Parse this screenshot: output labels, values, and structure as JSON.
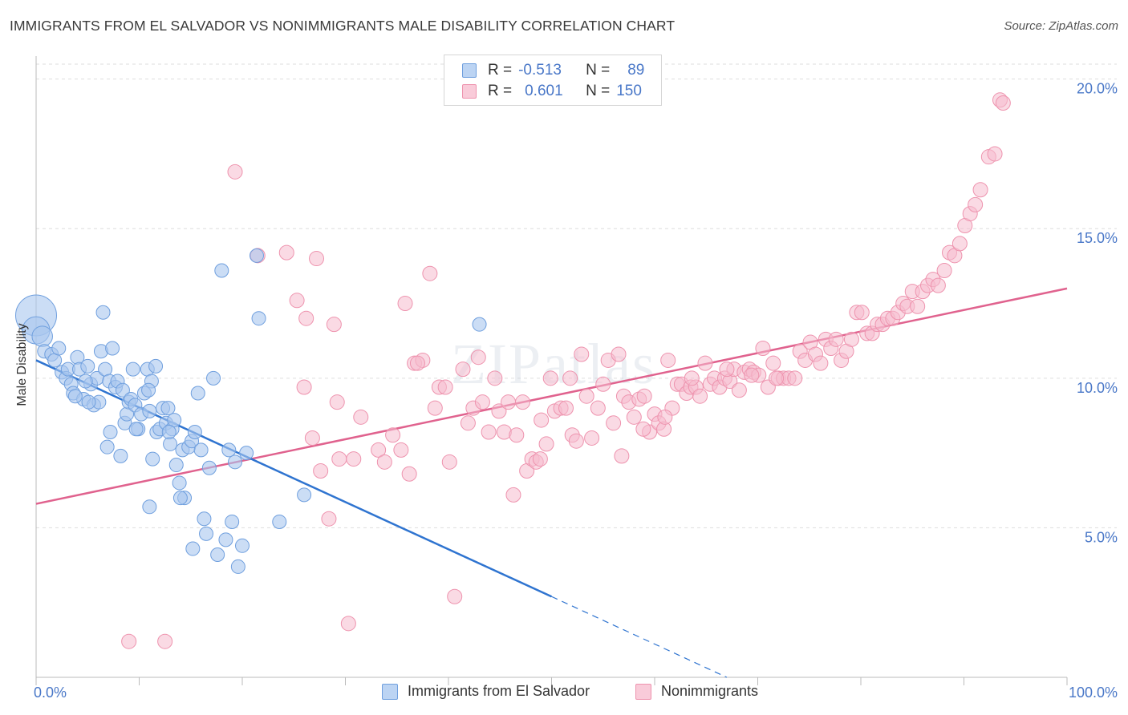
{
  "title": "IMMIGRANTS FROM EL SALVADOR VS NONIMMIGRANTS MALE DISABILITY CORRELATION CHART",
  "source": "Source: ZipAtlas.com",
  "watermark": "ZIPatlas",
  "legend": {
    "rows": [
      {
        "r_label": "R =",
        "r_value": "-0.513",
        "n_label": "N =",
        "n_value": "89"
      },
      {
        "r_label": "R =",
        "r_value": "0.601",
        "n_label": "N =",
        "n_value": "150"
      }
    ]
  },
  "colors": {
    "blue_fill": "#a9c6ee",
    "blue_stroke": "#6f9fde",
    "blue_line": "#2f74d0",
    "pink_fill": "#f6bccd",
    "pink_stroke": "#ee93ae",
    "pink_line": "#e0628e",
    "tick_text": "#4a78c8",
    "grid": "#dddddd"
  },
  "chart_data": {
    "type": "scatter",
    "title": "IMMIGRANTS FROM EL SALVADOR VS NONIMMIGRANTS MALE DISABILITY CORRELATION CHART",
    "xlabel": "",
    "ylabel": "Male Disability",
    "xlim": [
      0,
      100
    ],
    "ylim": [
      0,
      20.5
    ],
    "x_tick_labels": [
      "0.0%",
      "100.0%"
    ],
    "y_ticks": [
      5,
      10,
      15,
      20
    ],
    "y_tick_labels": [
      "5.0%",
      "10.0%",
      "15.0%",
      "20.0%"
    ],
    "grid": "horizontal dashed",
    "legend_position": "top-center and bottom",
    "series": [
      {
        "name": "Immigrants from El Salvador",
        "color": "#a9c6ee",
        "R": -0.513,
        "N": 89,
        "trend": {
          "x": [
            0,
            50,
            67
          ],
          "y": [
            10.6,
            2.7,
            0.0
          ],
          "solid_until_x": 50
        },
        "points": [
          [
            0,
            12.1,
            3
          ],
          [
            0,
            11.6,
            2
          ],
          [
            0.6,
            11.4,
            1.5
          ],
          [
            0.8,
            10.9,
            1
          ],
          [
            1.5,
            10.8,
            1
          ],
          [
            1.8,
            10.6,
            1
          ],
          [
            2.2,
            11.0,
            1
          ],
          [
            2.5,
            10.2,
            1
          ],
          [
            2.9,
            10.0,
            1
          ],
          [
            3.1,
            10.3,
            1
          ],
          [
            3.4,
            9.8,
            1
          ],
          [
            3.6,
            9.5,
            1
          ],
          [
            4.0,
            10.7,
            1
          ],
          [
            4.2,
            10.3,
            1
          ],
          [
            4.6,
            9.3,
            1
          ],
          [
            5.0,
            10.4,
            1
          ],
          [
            5.3,
            9.8,
            1
          ],
          [
            5.6,
            9.1,
            1
          ],
          [
            5.9,
            10.0,
            1
          ],
          [
            6.1,
            9.2,
            1
          ],
          [
            6.3,
            10.9,
            1
          ],
          [
            6.5,
            12.2,
            1
          ],
          [
            6.7,
            10.3,
            1
          ],
          [
            6.9,
            7.7,
            1
          ],
          [
            7.1,
            9.9,
            1
          ],
          [
            7.4,
            11.0,
            1
          ],
          [
            7.7,
            9.7,
            1
          ],
          [
            7.9,
            9.9,
            1
          ],
          [
            8.2,
            7.4,
            1
          ],
          [
            8.4,
            9.6,
            1
          ],
          [
            8.6,
            8.5,
            1
          ],
          [
            8.8,
            8.8,
            1
          ],
          [
            9.0,
            9.2,
            1
          ],
          [
            9.2,
            9.3,
            1
          ],
          [
            9.4,
            10.3,
            1
          ],
          [
            9.6,
            9.1,
            1
          ],
          [
            9.9,
            8.3,
            1
          ],
          [
            10.2,
            8.8,
            1
          ],
          [
            10.5,
            9.5,
            1
          ],
          [
            10.8,
            10.3,
            1
          ],
          [
            11.0,
            8.9,
            1
          ],
          [
            11.3,
            7.3,
            1
          ],
          [
            11.6,
            10.4,
            1
          ],
          [
            11.2,
            9.9,
            1
          ],
          [
            11.0,
            5.7,
            1
          ],
          [
            11.7,
            8.2,
            1
          ],
          [
            12.0,
            8.3,
            1
          ],
          [
            12.3,
            9.0,
            1
          ],
          [
            12.6,
            8.5,
            1
          ],
          [
            12.8,
            9.0,
            1
          ],
          [
            13.0,
            7.8,
            1
          ],
          [
            13.2,
            8.3,
            1
          ],
          [
            13.4,
            8.6,
            1
          ],
          [
            13.6,
            7.1,
            1
          ],
          [
            13.9,
            6.5,
            1
          ],
          [
            14.2,
            7.6,
            1
          ],
          [
            14.4,
            6.0,
            1
          ],
          [
            14.8,
            7.7,
            1
          ],
          [
            15.1,
            7.9,
            1
          ],
          [
            15.4,
            8.2,
            1
          ],
          [
            15.7,
            9.5,
            1
          ],
          [
            16.0,
            7.6,
            1
          ],
          [
            16.3,
            5.3,
            1
          ],
          [
            16.5,
            4.8,
            1
          ],
          [
            16.8,
            7.0,
            1
          ],
          [
            17.2,
            10.0,
            1
          ],
          [
            17.6,
            4.1,
            1
          ],
          [
            18.0,
            13.6,
            1
          ],
          [
            18.4,
            4.6,
            1
          ],
          [
            18.7,
            7.6,
            1
          ],
          [
            19.0,
            5.2,
            1
          ],
          [
            19.3,
            7.2,
            1
          ],
          [
            19.6,
            3.7,
            1
          ],
          [
            20.0,
            4.4,
            1
          ],
          [
            20.4,
            7.5,
            1
          ],
          [
            21.4,
            14.1,
            1
          ],
          [
            21.6,
            12.0,
            1
          ],
          [
            23.6,
            5.2,
            1
          ],
          [
            26.0,
            6.1,
            1
          ],
          [
            15.2,
            4.3,
            1
          ],
          [
            4.8,
            9.9,
            1
          ],
          [
            10.9,
            9.6,
            1
          ],
          [
            12.9,
            8.2,
            1
          ],
          [
            14.0,
            6.0,
            1
          ],
          [
            3.8,
            9.4,
            1
          ],
          [
            5.1,
            9.2,
            1
          ],
          [
            7.2,
            8.2,
            1
          ],
          [
            9.7,
            8.3,
            1
          ],
          [
            43.0,
            11.8,
            1
          ]
        ]
      },
      {
        "name": "Nonimmigrants",
        "color": "#f6bccd",
        "R": 0.601,
        "N": 150,
        "trend": {
          "x": [
            0,
            100
          ],
          "y": [
            5.8,
            13.0
          ]
        },
        "points": [
          [
            9.0,
            1.2
          ],
          [
            12.5,
            1.2
          ],
          [
            19.3,
            16.9
          ],
          [
            21.5,
            14.1
          ],
          [
            24.3,
            14.2
          ],
          [
            25.3,
            12.6
          ],
          [
            26.0,
            9.7
          ],
          [
            26.2,
            12.0
          ],
          [
            26.8,
            8.0
          ],
          [
            27.2,
            14.0
          ],
          [
            27.6,
            6.9
          ],
          [
            28.4,
            5.3
          ],
          [
            28.9,
            11.8
          ],
          [
            29.2,
            9.2
          ],
          [
            30.3,
            1.8
          ],
          [
            30.8,
            7.3
          ],
          [
            31.5,
            8.7
          ],
          [
            33.2,
            7.6
          ],
          [
            33.8,
            7.2
          ],
          [
            34.6,
            8.1
          ],
          [
            35.4,
            7.6
          ],
          [
            35.8,
            12.5
          ],
          [
            36.2,
            6.8
          ],
          [
            36.7,
            10.5
          ],
          [
            37.5,
            10.6
          ],
          [
            38.2,
            13.5
          ],
          [
            38.7,
            9.0
          ],
          [
            39.1,
            9.7
          ],
          [
            39.7,
            9.7
          ],
          [
            40.1,
            7.2
          ],
          [
            40.6,
            2.7
          ],
          [
            41.4,
            10.3
          ],
          [
            41.9,
            8.5
          ],
          [
            42.4,
            9.0
          ],
          [
            42.9,
            10.7
          ],
          [
            43.3,
            9.2
          ],
          [
            43.9,
            8.2
          ],
          [
            44.5,
            10.0
          ],
          [
            44.9,
            8.9
          ],
          [
            45.4,
            8.2
          ],
          [
            45.8,
            9.2
          ],
          [
            46.3,
            6.1
          ],
          [
            46.6,
            8.1
          ],
          [
            47.2,
            9.2
          ],
          [
            47.6,
            6.9
          ],
          [
            48.1,
            7.3
          ],
          [
            48.5,
            7.2
          ],
          [
            49.0,
            8.6
          ],
          [
            49.5,
            7.8
          ],
          [
            49.9,
            10.0
          ],
          [
            50.3,
            8.9
          ],
          [
            50.9,
            9.0
          ],
          [
            51.4,
            9.0
          ],
          [
            52.0,
            8.1
          ],
          [
            52.4,
            7.9
          ],
          [
            52.9,
            10.8
          ],
          [
            53.4,
            9.4
          ],
          [
            53.9,
            8.0
          ],
          [
            54.5,
            9.0
          ],
          [
            55.0,
            9.8
          ],
          [
            55.5,
            10.6
          ],
          [
            56.0,
            8.5
          ],
          [
            56.5,
            10.8
          ],
          [
            57.0,
            9.4
          ],
          [
            57.5,
            9.2
          ],
          [
            58.0,
            8.7
          ],
          [
            58.5,
            9.3
          ],
          [
            59.0,
            9.4
          ],
          [
            59.5,
            8.2
          ],
          [
            60.0,
            8.8
          ],
          [
            60.4,
            8.5
          ],
          [
            60.9,
            8.3
          ],
          [
            61.3,
            10.6
          ],
          [
            61.7,
            9.0
          ],
          [
            62.2,
            9.8
          ],
          [
            62.6,
            9.8
          ],
          [
            63.1,
            9.5
          ],
          [
            63.5,
            9.7
          ],
          [
            64.0,
            9.7
          ],
          [
            64.4,
            9.4
          ],
          [
            64.9,
            10.5
          ],
          [
            65.4,
            9.8
          ],
          [
            65.8,
            10.0
          ],
          [
            66.3,
            9.7
          ],
          [
            66.8,
            10.0
          ],
          [
            67.3,
            9.9
          ],
          [
            67.7,
            10.3
          ],
          [
            68.2,
            9.6
          ],
          [
            68.7,
            10.2
          ],
          [
            69.2,
            10.3
          ],
          [
            69.6,
            10.2
          ],
          [
            70.1,
            10.1
          ],
          [
            70.5,
            11.0
          ],
          [
            71.0,
            9.7
          ],
          [
            71.5,
            10.5
          ],
          [
            72.0,
            10.0
          ],
          [
            72.5,
            10.0
          ],
          [
            73.0,
            10.0
          ],
          [
            73.6,
            10.0
          ],
          [
            74.1,
            10.9
          ],
          [
            74.6,
            10.6
          ],
          [
            75.1,
            11.2
          ],
          [
            75.6,
            10.8
          ],
          [
            76.1,
            10.5
          ],
          [
            76.6,
            11.3
          ],
          [
            77.1,
            11.0
          ],
          [
            77.6,
            11.3
          ],
          [
            78.1,
            10.6
          ],
          [
            78.6,
            10.9
          ],
          [
            79.1,
            11.3
          ],
          [
            79.6,
            12.2
          ],
          [
            80.1,
            12.2
          ],
          [
            80.6,
            11.5
          ],
          [
            81.1,
            11.5
          ],
          [
            81.6,
            11.8
          ],
          [
            82.1,
            11.8
          ],
          [
            82.6,
            12.0
          ],
          [
            83.1,
            12.0
          ],
          [
            83.6,
            12.2
          ],
          [
            84.1,
            12.5
          ],
          [
            84.5,
            12.4
          ],
          [
            85.0,
            12.9
          ],
          [
            85.5,
            12.4
          ],
          [
            86.0,
            12.9
          ],
          [
            86.5,
            13.1
          ],
          [
            87.0,
            13.3
          ],
          [
            87.5,
            13.1
          ],
          [
            88.1,
            13.6
          ],
          [
            88.6,
            14.2
          ],
          [
            89.1,
            14.1
          ],
          [
            89.6,
            14.5
          ],
          [
            90.1,
            15.1
          ],
          [
            90.6,
            15.5
          ],
          [
            91.1,
            15.8
          ],
          [
            91.6,
            16.3
          ],
          [
            92.4,
            17.4
          ],
          [
            93.0,
            17.5
          ],
          [
            93.5,
            19.3
          ],
          [
            93.8,
            19.2
          ],
          [
            29.4,
            7.3
          ],
          [
            37.0,
            10.5
          ],
          [
            48.9,
            7.3
          ],
          [
            51.8,
            10.0
          ],
          [
            56.8,
            7.4
          ],
          [
            58.9,
            8.3
          ],
          [
            61.0,
            8.7
          ],
          [
            63.6,
            10.0
          ],
          [
            67.0,
            10.3
          ],
          [
            69.4,
            10.1
          ],
          [
            71.8,
            10.0
          ]
        ]
      }
    ]
  }
}
